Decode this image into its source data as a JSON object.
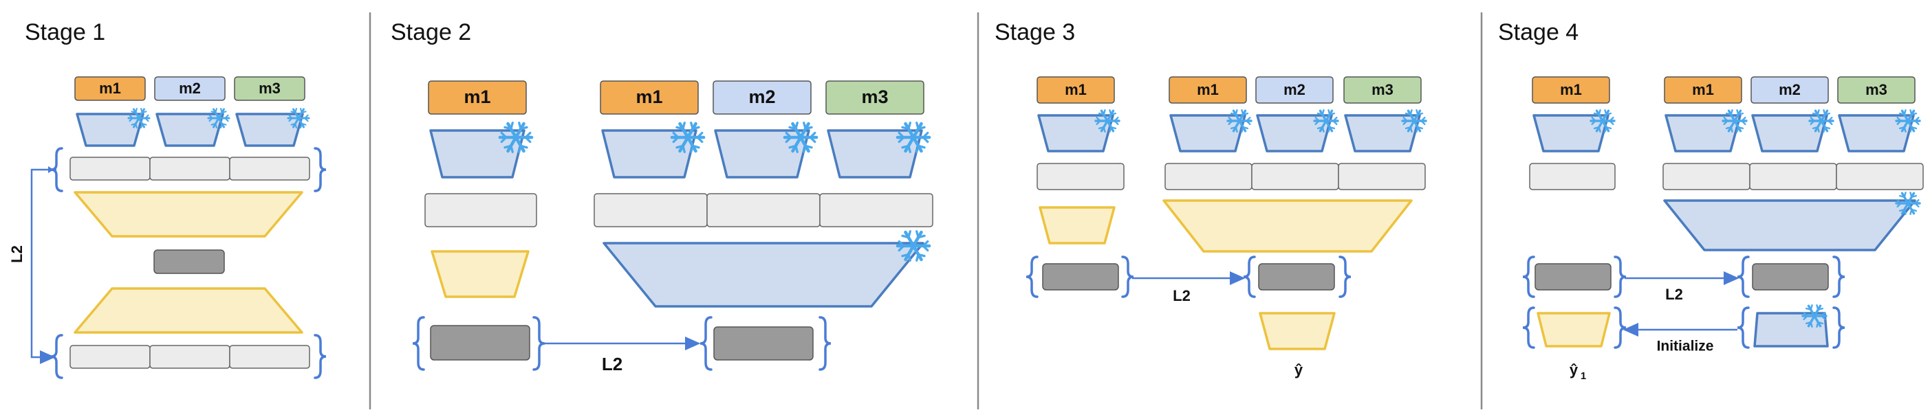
{
  "stages": [
    {
      "title": "Stage 1",
      "loss_label": "L2"
    },
    {
      "title": "Stage 2",
      "loss_label": "L2"
    },
    {
      "title": "Stage 3",
      "loss_label": "L2",
      "output_label": "ŷ"
    },
    {
      "title": "Stage 4",
      "loss_label": "L2",
      "initialize_label": "Initialize",
      "output_label": "ŷ",
      "output_subscript": "1"
    }
  ],
  "modalities": [
    "m1",
    "m2",
    "m3"
  ],
  "colors": {
    "m1": "#f4ac52",
    "m2": "#c9d8f3",
    "m3": "#b8d6a8",
    "encoder_fill": "#cfdcf0",
    "encoder_stroke": "#4a7cc0",
    "decoder_fill": "#fbefc7",
    "decoder_stroke": "#ecc23e",
    "latent": "#9a9a9a",
    "token_box": "#ececec",
    "bracket": "#4a7cd6",
    "divider": "#8a8a8a",
    "frozen_icon": "#4aa8ec"
  },
  "icons": [
    "snowflake-icon",
    "arrow-icon",
    "bracket-icon"
  ]
}
